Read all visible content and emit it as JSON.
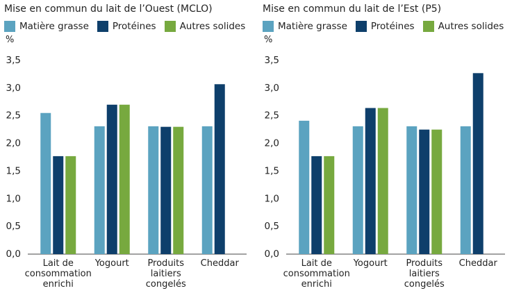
{
  "chart_data": [
    {
      "type": "bar",
      "title": "Mise en commun du lait de l’Ouest (MCLO)",
      "y_label": "%",
      "categories": [
        "Lait de\nconsommation\nenrichi",
        "Yogourt",
        "Produits\nlaitiers\ncongelés",
        "Cheddar"
      ],
      "series": [
        {
          "name": "Matière grasse",
          "color": "#5ba3c0",
          "values": [
            2.55,
            2.31,
            2.31,
            2.31
          ]
        },
        {
          "name": "Protéines",
          "color": "#0e3f6b",
          "values": [
            1.77,
            2.7,
            2.3,
            3.07
          ]
        },
        {
          "name": "Autres solides",
          "color": "#77a93f",
          "values": [
            1.77,
            2.7,
            2.3,
            null
          ]
        }
      ],
      "ylim": [
        0,
        3.5
      ],
      "yticks": [
        {
          "value": 0,
          "label": "0,0"
        },
        {
          "value": 0.5,
          "label": "0,5"
        },
        {
          "value": 1,
          "label": "1,0"
        },
        {
          "value": 1.5,
          "label": "1,5"
        },
        {
          "value": 2,
          "label": "2,0"
        },
        {
          "value": 2.5,
          "label": "2,5"
        },
        {
          "value": 3,
          "label": "3,0"
        },
        {
          "value": 3.5,
          "label": "3,5"
        }
      ]
    },
    {
      "type": "bar",
      "title": "Mise en commun du lait de l’Est (P5)",
      "y_label": "%",
      "categories": [
        "Lait de\nconsommation\nenrichi",
        "Yogourt",
        "Produits\nlaitiers\ncongelés",
        "Cheddar"
      ],
      "series": [
        {
          "name": "Matière grasse",
          "color": "#5ba3c0",
          "values": [
            2.41,
            2.31,
            2.31,
            2.31
          ]
        },
        {
          "name": "Protéines",
          "color": "#0e3f6b",
          "values": [
            1.77,
            2.64,
            2.25,
            3.27
          ]
        },
        {
          "name": "Autres solides",
          "color": "#77a93f",
          "values": [
            1.77,
            2.64,
            2.25,
            null
          ]
        }
      ],
      "ylim": [
        0,
        3.5
      ],
      "yticks": [
        {
          "value": 0,
          "label": "0,0"
        },
        {
          "value": 0.5,
          "label": "0,5"
        },
        {
          "value": 1,
          "label": "1,0"
        },
        {
          "value": 1.5,
          "label": "1,5"
        },
        {
          "value": 2,
          "label": "2,0"
        },
        {
          "value": 2.5,
          "label": "2,5"
        },
        {
          "value": 3,
          "label": "3,0"
        },
        {
          "value": 3.5,
          "label": "3,5"
        }
      ]
    }
  ]
}
